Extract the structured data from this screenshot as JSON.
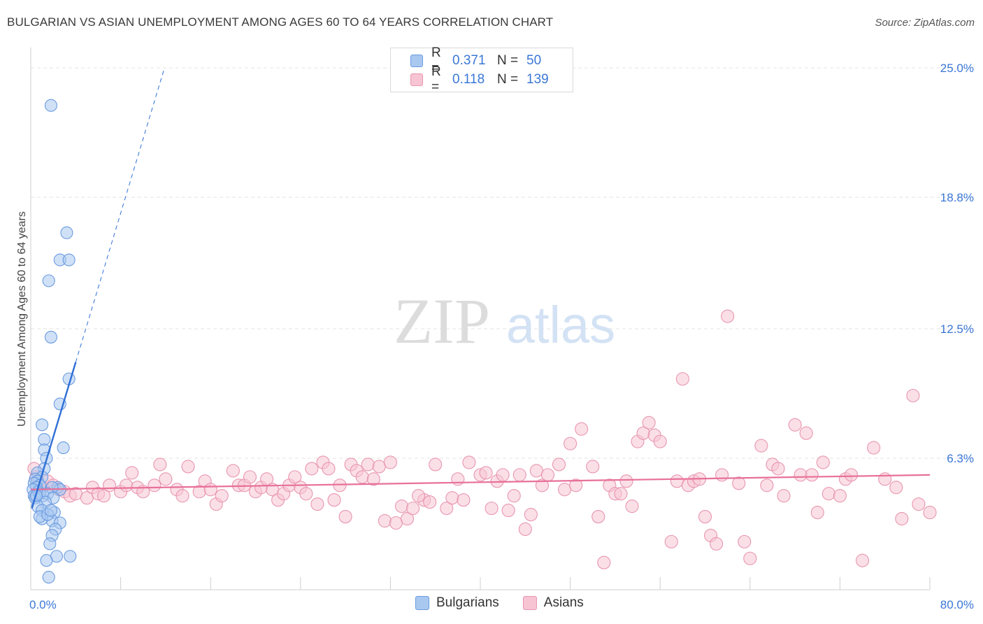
{
  "header": {
    "title": "BULGARIAN VS ASIAN UNEMPLOYMENT AMONG AGES 60 TO 64 YEARS CORRELATION CHART",
    "source": "Source: ZipAtlas.com"
  },
  "colors": {
    "bulgarians": "#6a9be0",
    "bulgarians_fill": "#a9c8f0",
    "asians": "#e895b0",
    "asians_fill": "#f7c4d4",
    "bulgarians_trend": "#2f6fd6",
    "asians_trend": "#e8709a",
    "tick_text": "#3a77d6"
  },
  "legend": {
    "r_label": "R =",
    "n_label": "N =",
    "bulgarians_r": "0.371",
    "bulgarians_n": "50",
    "asians_r": "0.118",
    "asians_n": "139"
  },
  "bottom_legend": {
    "bulgarians": "Bulgarians",
    "asians": "Asians"
  },
  "watermark": {
    "zip": "ZIP",
    "atlas": "atlas"
  },
  "chart_data": {
    "type": "scatter",
    "title": "BULGARIAN VS ASIAN UNEMPLOYMENT AMONG AGES 60 TO 64 YEARS CORRELATION CHART",
    "xlabel": "",
    "ylabel": "Unemployment Among Ages 60 to 64 years",
    "xlim": [
      0,
      80
    ],
    "ylim": [
      0,
      25
    ],
    "x_tick_labels": [
      "0.0%",
      "80.0%"
    ],
    "y_ticks": [
      6.3,
      12.5,
      18.8,
      25.0
    ],
    "y_tick_labels": [
      "6.3%",
      "12.5%",
      "18.8%",
      "25.0%"
    ],
    "grid": true,
    "legend_position": "top-center",
    "series": [
      {
        "name": "Bulgarians",
        "r": 0.371,
        "n": 50,
        "trend": {
          "x": [
            0.1,
            4.0
          ],
          "y": [
            3.9,
            10.9
          ]
        },
        "trend_ext": {
          "x": [
            4.0,
            11.9
          ],
          "y": [
            10.9,
            25.0
          ]
        },
        "points": [
          [
            1.8,
            23.2
          ],
          [
            3.2,
            17.1
          ],
          [
            2.6,
            15.8
          ],
          [
            3.4,
            15.8
          ],
          [
            1.6,
            14.8
          ],
          [
            1.8,
            12.1
          ],
          [
            3.4,
            10.1
          ],
          [
            2.6,
            8.9
          ],
          [
            1.0,
            7.9
          ],
          [
            1.2,
            7.2
          ],
          [
            2.9,
            6.8
          ],
          [
            1.2,
            6.7
          ],
          [
            1.4,
            6.3
          ],
          [
            1.2,
            5.8
          ],
          [
            0.6,
            5.6
          ],
          [
            1.0,
            5.4
          ],
          [
            0.4,
            5.3
          ],
          [
            0.6,
            5.2
          ],
          [
            0.3,
            5.1
          ],
          [
            0.8,
            5.0
          ],
          [
            0.5,
            4.9
          ],
          [
            0.2,
            4.8
          ],
          [
            2.4,
            4.9
          ],
          [
            2.6,
            4.8
          ],
          [
            1.9,
            4.9
          ],
          [
            0.7,
            4.7
          ],
          [
            0.3,
            4.5
          ],
          [
            1.1,
            4.5
          ],
          [
            0.4,
            4.4
          ],
          [
            0.8,
            4.6
          ],
          [
            1.5,
            4.6
          ],
          [
            2.0,
            4.4
          ],
          [
            1.3,
            4.2
          ],
          [
            0.6,
            4.0
          ],
          [
            1.0,
            3.8
          ],
          [
            2.1,
            3.7
          ],
          [
            1.9,
            3.3
          ],
          [
            2.6,
            3.2
          ],
          [
            1.0,
            3.4
          ],
          [
            0.8,
            3.5
          ],
          [
            1.5,
            3.6
          ],
          [
            2.2,
            2.9
          ],
          [
            1.9,
            2.6
          ],
          [
            1.7,
            2.2
          ],
          [
            2.3,
            1.6
          ],
          [
            3.5,
            1.6
          ],
          [
            1.4,
            1.4
          ],
          [
            1.6,
            0.6
          ],
          [
            0.5,
            4.5
          ],
          [
            1.8,
            3.8
          ]
        ]
      },
      {
        "name": "Asians",
        "r": 0.118,
        "n": 139,
        "trend": {
          "x": [
            0,
            80
          ],
          "y": [
            4.8,
            5.5
          ]
        },
        "points": [
          [
            0.5,
            5.4
          ],
          [
            1.5,
            5.2
          ],
          [
            2.0,
            5.0
          ],
          [
            2.5,
            4.8
          ],
          [
            3.0,
            4.7
          ],
          [
            3.5,
            4.5
          ],
          [
            4.0,
            4.6
          ],
          [
            1.0,
            4.9
          ],
          [
            0.3,
            5.8
          ],
          [
            5.0,
            4.4
          ],
          [
            5.5,
            4.9
          ],
          [
            6.0,
            4.6
          ],
          [
            6.5,
            4.5
          ],
          [
            7.0,
            5.0
          ],
          [
            8.0,
            4.7
          ],
          [
            8.5,
            5.0
          ],
          [
            9.5,
            4.9
          ],
          [
            9.0,
            5.6
          ],
          [
            10.0,
            4.7
          ],
          [
            11.0,
            5.0
          ],
          [
            11.5,
            6.0
          ],
          [
            12.0,
            5.3
          ],
          [
            13.0,
            4.8
          ],
          [
            13.5,
            4.5
          ],
          [
            14.0,
            5.9
          ],
          [
            15.0,
            4.7
          ],
          [
            15.5,
            5.2
          ],
          [
            16.0,
            4.8
          ],
          [
            16.5,
            4.1
          ],
          [
            17.0,
            4.5
          ],
          [
            18.0,
            5.7
          ],
          [
            18.5,
            5.0
          ],
          [
            19.0,
            5.0
          ],
          [
            19.5,
            5.4
          ],
          [
            20.0,
            4.7
          ],
          [
            20.5,
            4.9
          ],
          [
            21.0,
            5.3
          ],
          [
            21.5,
            4.8
          ],
          [
            22.0,
            4.3
          ],
          [
            22.5,
            4.6
          ],
          [
            23.0,
            5.0
          ],
          [
            23.5,
            5.4
          ],
          [
            24.0,
            4.9
          ],
          [
            24.5,
            4.6
          ],
          [
            25.0,
            5.8
          ],
          [
            25.5,
            4.1
          ],
          [
            26.0,
            6.1
          ],
          [
            26.5,
            5.8
          ],
          [
            27.0,
            4.3
          ],
          [
            27.5,
            5.0
          ],
          [
            28.0,
            3.5
          ],
          [
            28.5,
            6.0
          ],
          [
            29.0,
            5.7
          ],
          [
            29.5,
            5.4
          ],
          [
            30.0,
            6.0
          ],
          [
            30.5,
            5.3
          ],
          [
            31.0,
            5.9
          ],
          [
            31.5,
            3.3
          ],
          [
            32.0,
            6.1
          ],
          [
            32.5,
            3.2
          ],
          [
            33.0,
            4.0
          ],
          [
            33.5,
            3.4
          ],
          [
            34.0,
            3.9
          ],
          [
            35.0,
            4.3
          ],
          [
            34.5,
            4.5
          ],
          [
            35.5,
            4.2
          ],
          [
            36.0,
            6.0
          ],
          [
            37.0,
            3.9
          ],
          [
            37.5,
            4.4
          ],
          [
            38.0,
            5.3
          ],
          [
            38.5,
            4.3
          ],
          [
            39.0,
            6.1
          ],
          [
            40.0,
            5.5
          ],
          [
            40.5,
            5.6
          ],
          [
            41.0,
            3.9
          ],
          [
            41.5,
            5.2
          ],
          [
            42.0,
            5.5
          ],
          [
            42.5,
            3.8
          ],
          [
            43.0,
            4.5
          ],
          [
            43.5,
            5.5
          ],
          [
            44.0,
            2.9
          ],
          [
            44.5,
            3.6
          ],
          [
            45.0,
            5.7
          ],
          [
            45.5,
            5.0
          ],
          [
            46.0,
            5.5
          ],
          [
            47.0,
            6.0
          ],
          [
            47.5,
            4.8
          ],
          [
            48.0,
            7.0
          ],
          [
            48.5,
            5.0
          ],
          [
            49.0,
            7.7
          ],
          [
            50.0,
            5.9
          ],
          [
            50.5,
            3.5
          ],
          [
            51.0,
            1.3
          ],
          [
            51.5,
            5.0
          ],
          [
            52.0,
            4.6
          ],
          [
            52.5,
            4.6
          ],
          [
            53.0,
            5.2
          ],
          [
            53.5,
            4.0
          ],
          [
            54.0,
            7.1
          ],
          [
            54.5,
            7.5
          ],
          [
            55.0,
            8.0
          ],
          [
            55.5,
            7.4
          ],
          [
            56.0,
            7.1
          ],
          [
            57.0,
            2.3
          ],
          [
            57.5,
            5.2
          ],
          [
            58.0,
            10.1
          ],
          [
            58.5,
            5.0
          ],
          [
            59.0,
            5.2
          ],
          [
            59.5,
            5.3
          ],
          [
            60.0,
            3.5
          ],
          [
            60.5,
            2.6
          ],
          [
            61.0,
            2.2
          ],
          [
            61.5,
            5.5
          ],
          [
            62.0,
            13.1
          ],
          [
            63.0,
            5.1
          ],
          [
            63.5,
            2.3
          ],
          [
            64.0,
            1.5
          ],
          [
            65.0,
            6.9
          ],
          [
            65.5,
            5.0
          ],
          [
            66.0,
            6.0
          ],
          [
            66.5,
            5.8
          ],
          [
            67.0,
            4.5
          ],
          [
            68.0,
            7.9
          ],
          [
            68.5,
            5.5
          ],
          [
            69.0,
            7.5
          ],
          [
            69.5,
            5.5
          ],
          [
            70.0,
            3.7
          ],
          [
            70.5,
            6.1
          ],
          [
            71.0,
            4.6
          ],
          [
            72.0,
            4.5
          ],
          [
            72.5,
            5.3
          ],
          [
            73.0,
            5.5
          ],
          [
            74.0,
            1.4
          ],
          [
            75.0,
            6.8
          ],
          [
            76.0,
            5.3
          ],
          [
            77.0,
            4.9
          ],
          [
            77.5,
            3.4
          ],
          [
            78.5,
            9.3
          ],
          [
            79.0,
            4.1
          ],
          [
            80.0,
            3.7
          ]
        ]
      }
    ]
  }
}
